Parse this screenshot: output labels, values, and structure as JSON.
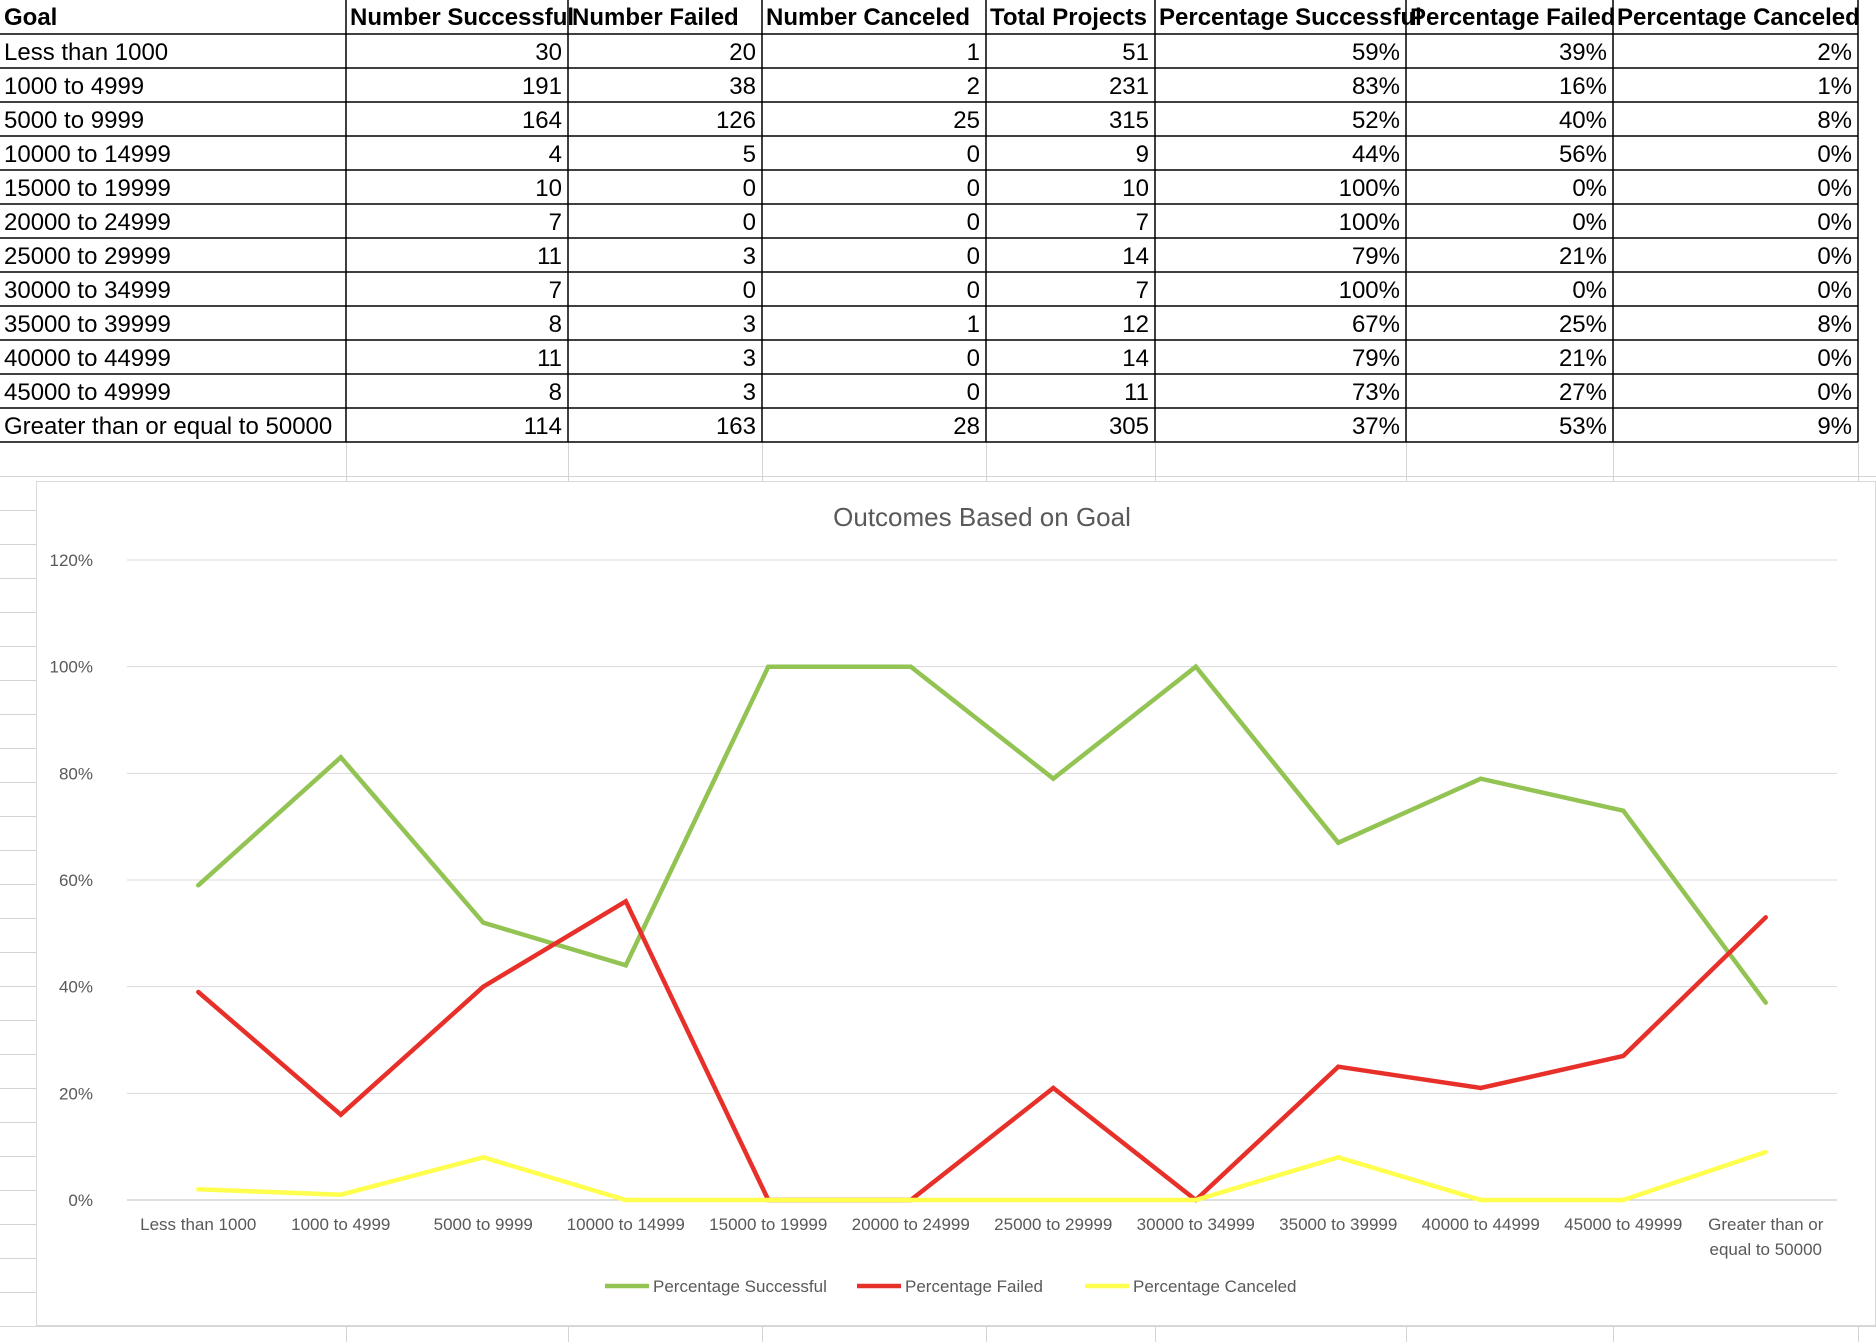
{
  "table": {
    "headers": [
      "Goal",
      "Number Successful",
      "Number Failed",
      "Number Canceled",
      "Total Projects",
      "Percentage Successful",
      "Percentage Failed",
      "Percentage Canceled"
    ],
    "rows": [
      [
        "Less than 1000",
        "30",
        "20",
        "1",
        "51",
        "59%",
        "39%",
        "2%"
      ],
      [
        "1000 to 4999",
        "191",
        "38",
        "2",
        "231",
        "83%",
        "16%",
        "1%"
      ],
      [
        "5000 to 9999",
        "164",
        "126",
        "25",
        "315",
        "52%",
        "40%",
        "8%"
      ],
      [
        "10000 to 14999",
        "4",
        "5",
        "0",
        "9",
        "44%",
        "56%",
        "0%"
      ],
      [
        "15000 to 19999",
        "10",
        "0",
        "0",
        "10",
        "100%",
        "0%",
        "0%"
      ],
      [
        "20000 to 24999",
        "7",
        "0",
        "0",
        "7",
        "100%",
        "0%",
        "0%"
      ],
      [
        "25000 to 29999",
        "11",
        "3",
        "0",
        "14",
        "79%",
        "21%",
        "0%"
      ],
      [
        "30000 to 34999",
        "7",
        "0",
        "0",
        "7",
        "100%",
        "0%",
        "0%"
      ],
      [
        "35000 to 39999",
        "8",
        "3",
        "1",
        "12",
        "67%",
        "25%",
        "8%"
      ],
      [
        "40000 to 44999",
        "11",
        "3",
        "0",
        "14",
        "79%",
        "21%",
        "0%"
      ],
      [
        "45000 to 49999",
        "8",
        "3",
        "0",
        "11",
        "73%",
        "27%",
        "0%"
      ],
      [
        "Greater than or equal to 50000",
        "114",
        "163",
        "28",
        "305",
        "37%",
        "53%",
        "9%"
      ]
    ]
  },
  "chart_data": {
    "type": "line",
    "title": "Outcomes Based on Goal",
    "xlabel": "",
    "ylabel": "",
    "categories": [
      "Less than 1000",
      "1000 to 4999",
      "5000 to 9999",
      "10000 to 14999",
      "15000 to 19999",
      "20000 to 24999",
      "25000 to 29999",
      "30000 to 34999",
      "35000 to 39999",
      "40000 to 44999",
      "45000 to 49999",
      "Greater than or equal to 50000"
    ],
    "category_display": [
      [
        "Less than 1000"
      ],
      [
        "1000 to 4999"
      ],
      [
        "5000 to 9999"
      ],
      [
        "10000 to 14999"
      ],
      [
        "15000 to 19999"
      ],
      [
        "20000 to 24999"
      ],
      [
        "25000 to 29999"
      ],
      [
        "30000 to 34999"
      ],
      [
        "35000 to 39999"
      ],
      [
        "40000 to 44999"
      ],
      [
        "45000 to 49999"
      ],
      [
        "Greater than or",
        "equal to 50000"
      ]
    ],
    "ylim": [
      0,
      120
    ],
    "yticks": [
      0,
      20,
      40,
      60,
      80,
      100,
      120
    ],
    "ytick_labels": [
      "0%",
      "20%",
      "40%",
      "60%",
      "80%",
      "100%",
      "120%"
    ],
    "grid": true,
    "legend": "bottom",
    "series": [
      {
        "name": "Percentage Successful",
        "color": "#92c353",
        "values": [
          59,
          83,
          52,
          44,
          100,
          100,
          79,
          100,
          67,
          79,
          73,
          37
        ]
      },
      {
        "name": "Percentage Failed",
        "color": "#e8302a",
        "values": [
          39,
          16,
          40,
          56,
          0,
          0,
          21,
          0,
          25,
          21,
          27,
          53
        ]
      },
      {
        "name": "Percentage Canceled",
        "color": "#ffff4d",
        "values": [
          2,
          1,
          8,
          0,
          0,
          0,
          0,
          0,
          8,
          0,
          0,
          9
        ]
      }
    ]
  }
}
